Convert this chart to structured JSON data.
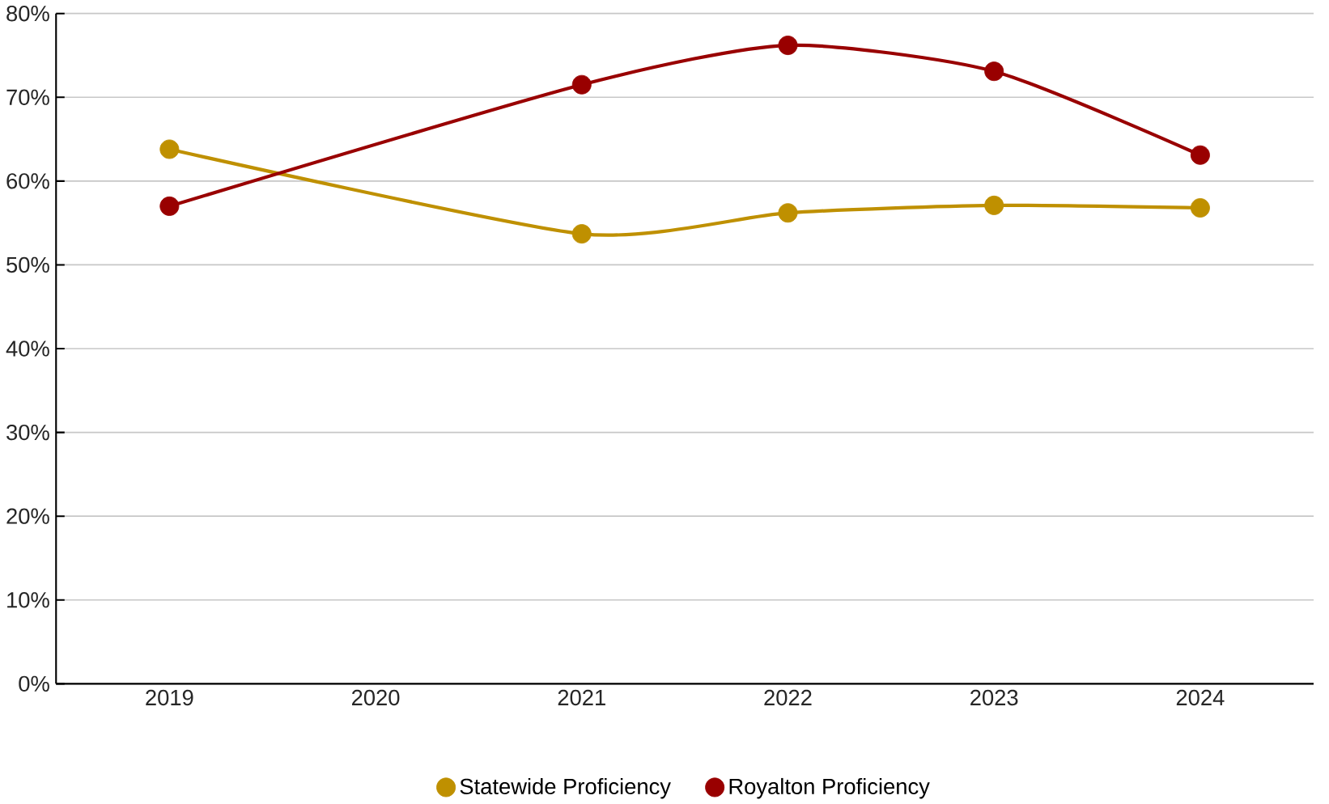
{
  "chart_data": {
    "type": "line",
    "xlim": [
      2018.45,
      2024.55
    ],
    "xticks": [
      2019,
      2020,
      2021,
      2022,
      2023,
      2024
    ],
    "ylim": [
      0,
      80
    ],
    "yticks": [
      {
        "value": 0,
        "label": "0%"
      },
      {
        "value": 10,
        "label": "10%"
      },
      {
        "value": 20,
        "label": "20%"
      },
      {
        "value": 30,
        "label": "30%"
      },
      {
        "value": 40,
        "label": "40%"
      },
      {
        "value": 50,
        "label": "50%"
      },
      {
        "value": 60,
        "label": "60%"
      },
      {
        "value": 70,
        "label": "70%"
      },
      {
        "value": 80,
        "label": "80%"
      }
    ],
    "grid": "y",
    "legend": "bottom",
    "marker": "circle",
    "series": [
      {
        "name": "Statewide Proficiency",
        "color": "#bf9000",
        "x": [
          2019,
          2021,
          2022,
          2023,
          2024
        ],
        "values": [
          63.8,
          53.7,
          56.2,
          57.1,
          56.8
        ]
      },
      {
        "name": "Royalton Proficiency",
        "color": "#990000",
        "x": [
          2019,
          2021,
          2022,
          2023,
          2024
        ],
        "values": [
          57.0,
          71.5,
          76.2,
          73.1,
          63.1
        ]
      }
    ]
  }
}
